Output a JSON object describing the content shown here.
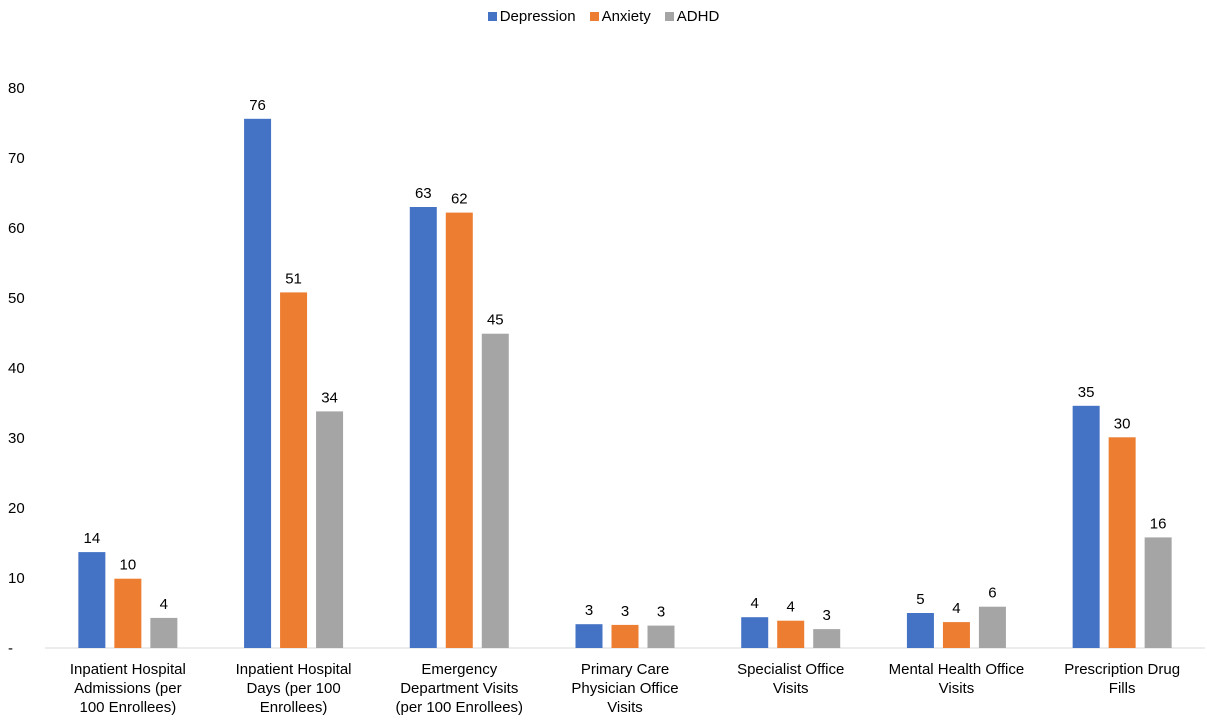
{
  "chart_data": {
    "type": "bar",
    "title": "",
    "xlabel": "",
    "ylabel": "",
    "ylim": [
      0,
      80
    ],
    "yticks": [
      0,
      10,
      20,
      30,
      40,
      50,
      60,
      70,
      80
    ],
    "ytick_labels": [
      "-",
      "10",
      "20",
      "30",
      "40",
      "50",
      "60",
      "70",
      "80"
    ],
    "grid": false,
    "legend_position": "top-center",
    "categories": [
      [
        "Inpatient Hospital",
        "Admissions (per",
        "100 Enrollees)"
      ],
      [
        "Inpatient Hospital",
        "Days (per 100",
        "Enrollees)"
      ],
      [
        "Emergency",
        "Department Visits",
        "(per 100 Enrollees)"
      ],
      [
        "Primary Care",
        "Physician Office",
        "Visits"
      ],
      [
        "Specialist Office",
        "Visits"
      ],
      [
        "Mental Health Office",
        "Visits"
      ],
      [
        "Prescription Drug",
        "Fills"
      ]
    ],
    "series": [
      {
        "name": "Depression",
        "color": "#4472C4",
        "values": [
          13.7,
          75.6,
          63.0,
          3.4,
          4.4,
          5.0,
          34.6
        ],
        "labels": [
          "14",
          "76",
          "63",
          "3",
          "4",
          "5",
          "35"
        ]
      },
      {
        "name": "Anxiety",
        "color": "#ED7D31",
        "values": [
          9.9,
          50.8,
          62.2,
          3.3,
          3.9,
          3.7,
          30.1
        ],
        "labels": [
          "10",
          "51",
          "62",
          "3",
          "4",
          "4",
          "30"
        ]
      },
      {
        "name": "ADHD",
        "color": "#A5A5A5",
        "values": [
          4.3,
          33.8,
          44.9,
          3.2,
          2.7,
          5.9,
          15.8
        ],
        "labels": [
          "4",
          "34",
          "45",
          "3",
          "3",
          "6",
          "16"
        ]
      }
    ]
  }
}
